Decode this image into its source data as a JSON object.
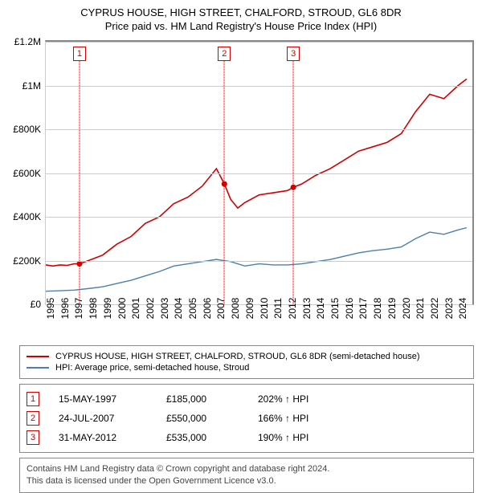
{
  "title": "CYPRUS HOUSE, HIGH STREET, CHALFORD, STROUD, GL6 8DR",
  "subtitle": "Price paid vs. HM Land Registry's House Price Index (HPI)",
  "chart": {
    "type": "line",
    "background_color": "#ffffff",
    "grid_color": "#cccccc",
    "border_top_right_color": "#888888",
    "x": {
      "min": 1995,
      "max": 2025,
      "ticks": [
        1995,
        1996,
        1997,
        1998,
        1999,
        2000,
        2001,
        2002,
        2003,
        2004,
        2005,
        2006,
        2007,
        2008,
        2009,
        2010,
        2011,
        2012,
        2013,
        2014,
        2015,
        2016,
        2017,
        2018,
        2019,
        2020,
        2021,
        2022,
        2023,
        2024
      ],
      "label_fontsize": 12,
      "label_rotation_deg": -90
    },
    "y": {
      "min": 0,
      "max": 1200000,
      "ticks": [
        0,
        200000,
        400000,
        600000,
        800000,
        1000000,
        1200000
      ],
      "tick_labels": [
        "£0",
        "£200K",
        "£400K",
        "£600K",
        "£800K",
        "£1M",
        "£1.2M"
      ],
      "label_fontsize": 12
    },
    "series": [
      {
        "name": "CYPRUS HOUSE, HIGH STREET, CHALFORD, STROUD, GL6 8DR (semi-detached house)",
        "color": "#d00000",
        "line_width": 1.6,
        "x": [
          1995,
          1995.5,
          1996,
          1996.5,
          1997,
          1997.37,
          1998,
          1999,
          2000,
          2001,
          2002,
          2003,
          2004,
          2005,
          2006,
          2007,
          2007.56,
          2008,
          2008.5,
          2009,
          2010,
          2011,
          2012,
          2012.41,
          2013,
          2014,
          2015,
          2016,
          2017,
          2018,
          2019,
          2020,
          2021,
          2022,
          2023,
          2024,
          2024.6
        ],
        "y": [
          180000,
          175000,
          180000,
          178000,
          185000,
          185000,
          200000,
          225000,
          275000,
          310000,
          370000,
          400000,
          460000,
          490000,
          540000,
          620000,
          550000,
          480000,
          440000,
          465000,
          500000,
          510000,
          520000,
          535000,
          550000,
          590000,
          620000,
          660000,
          700000,
          720000,
          740000,
          780000,
          880000,
          960000,
          940000,
          1000000,
          1030000
        ]
      },
      {
        "name": "HPI: Average price, semi-detached house, Stroud",
        "color": "#4a7fb0",
        "line_width": 1.4,
        "x": [
          1995,
          1996,
          1997,
          1998,
          1999,
          2000,
          2001,
          2002,
          2003,
          2004,
          2005,
          2006,
          2007,
          2008,
          2009,
          2010,
          2011,
          2012,
          2013,
          2014,
          2015,
          2016,
          2017,
          2018,
          2019,
          2020,
          2021,
          2022,
          2023,
          2024,
          2024.6
        ],
        "y": [
          60000,
          62000,
          65000,
          72000,
          80000,
          95000,
          110000,
          130000,
          150000,
          175000,
          185000,
          195000,
          205000,
          195000,
          175000,
          185000,
          180000,
          180000,
          185000,
          195000,
          205000,
          220000,
          235000,
          245000,
          252000,
          262000,
          300000,
          330000,
          320000,
          340000,
          350000
        ]
      }
    ],
    "transactions": [
      {
        "n": "1",
        "x": 1997.37,
        "price": 185000
      },
      {
        "n": "2",
        "x": 2007.56,
        "price": 550000
      },
      {
        "n": "3",
        "x": 2012.41,
        "price": 535000
      }
    ],
    "marker_box": {
      "border_color": "#d00000",
      "text_color": "#d00000",
      "fontsize": 11
    },
    "marker_vline": {
      "color": "#d00000",
      "style": "dotted"
    },
    "sale_point": {
      "color": "#d00000",
      "radius": 3.5
    }
  },
  "legend": {
    "items": [
      {
        "color": "#d00000",
        "label": "CYPRUS HOUSE, HIGH STREET, CHALFORD, STROUD, GL6 8DR (semi-detached house)"
      },
      {
        "color": "#4a7fb0",
        "label": "HPI: Average price, semi-detached house, Stroud"
      }
    ],
    "fontsize": 11,
    "border_color": "#888888"
  },
  "transactions_table": {
    "rows": [
      {
        "n": "1",
        "date": "15-MAY-1997",
        "price": "£185,000",
        "delta": "202% ↑ HPI"
      },
      {
        "n": "2",
        "date": "24-JUL-2007",
        "price": "£550,000",
        "delta": "166% ↑ HPI"
      },
      {
        "n": "3",
        "date": "31-MAY-2012",
        "price": "£535,000",
        "delta": "190% ↑ HPI"
      }
    ],
    "fontsize": 12,
    "border_color": "#888888"
  },
  "footer": {
    "line1": "Contains HM Land Registry data © Crown copyright and database right 2024.",
    "line2": "This data is licensed under the Open Government Licence v3.0.",
    "fontsize": 11,
    "border_color": "#888888",
    "text_color": "#444444"
  }
}
